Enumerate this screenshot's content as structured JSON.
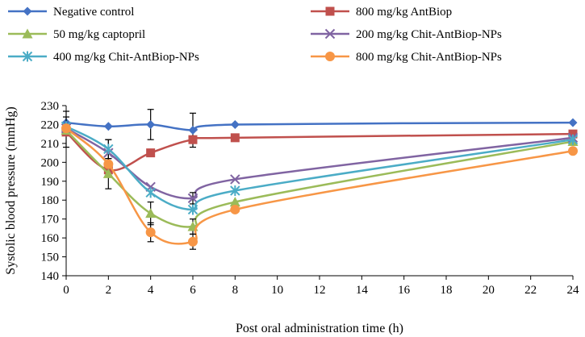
{
  "chart_data": {
    "type": "line",
    "title": "",
    "xlabel": "Post oral administration time (h)",
    "ylabel": "Systolic blood pressure (mmHg)",
    "xlim": [
      0,
      24
    ],
    "ylim": [
      140,
      230
    ],
    "xticks": [
      0,
      2,
      4,
      6,
      8,
      10,
      12,
      14,
      16,
      18,
      20,
      22,
      24
    ],
    "yticks": [
      140,
      150,
      160,
      170,
      180,
      190,
      200,
      210,
      220,
      230
    ],
    "grid": false,
    "legend_placement": "top",
    "x": [
      0,
      2,
      4,
      6,
      8,
      24
    ],
    "series": [
      {
        "name": "Negative control",
        "marker": "diamond",
        "color": "#4472c4",
        "values": [
          221,
          219,
          220,
          217,
          220,
          221
        ],
        "error": [
          6,
          0,
          8,
          9,
          0,
          0
        ]
      },
      {
        "name": "800 mg/kg AntBiop",
        "marker": "square",
        "color": "#c0504d",
        "values": [
          216,
          196,
          205,
          212,
          213,
          215
        ],
        "error": [
          8,
          0,
          0,
          0,
          0,
          0
        ]
      },
      {
        "name": "50 mg/kg captopril",
        "marker": "triangle",
        "color": "#9bbb59",
        "values": [
          217,
          194,
          173,
          166,
          179,
          211
        ],
        "error": [
          0,
          8,
          6,
          4,
          0,
          0
        ]
      },
      {
        "name": "200 mg/kg Chit-AntBiop-NPs",
        "marker": "x",
        "color": "#8064a2",
        "values": [
          218,
          205,
          187,
          181,
          191,
          213
        ],
        "error": [
          0,
          7,
          0,
          3,
          0,
          0
        ]
      },
      {
        "name": "400 mg/kg Chit-AntBiop-NPs",
        "marker": "asterisk",
        "color": "#4bacc6",
        "values": [
          219,
          207,
          184,
          175,
          185,
          212
        ],
        "error": [
          0,
          5,
          0,
          0,
          0,
          0
        ]
      },
      {
        "name": "800 mg/kg Chit-AntBiop-NPs",
        "marker": "circle",
        "color": "#f79646",
        "values": [
          218,
          199,
          163,
          158,
          175,
          206
        ],
        "error": [
          0,
          0,
          5,
          4,
          0,
          0
        ]
      }
    ]
  }
}
